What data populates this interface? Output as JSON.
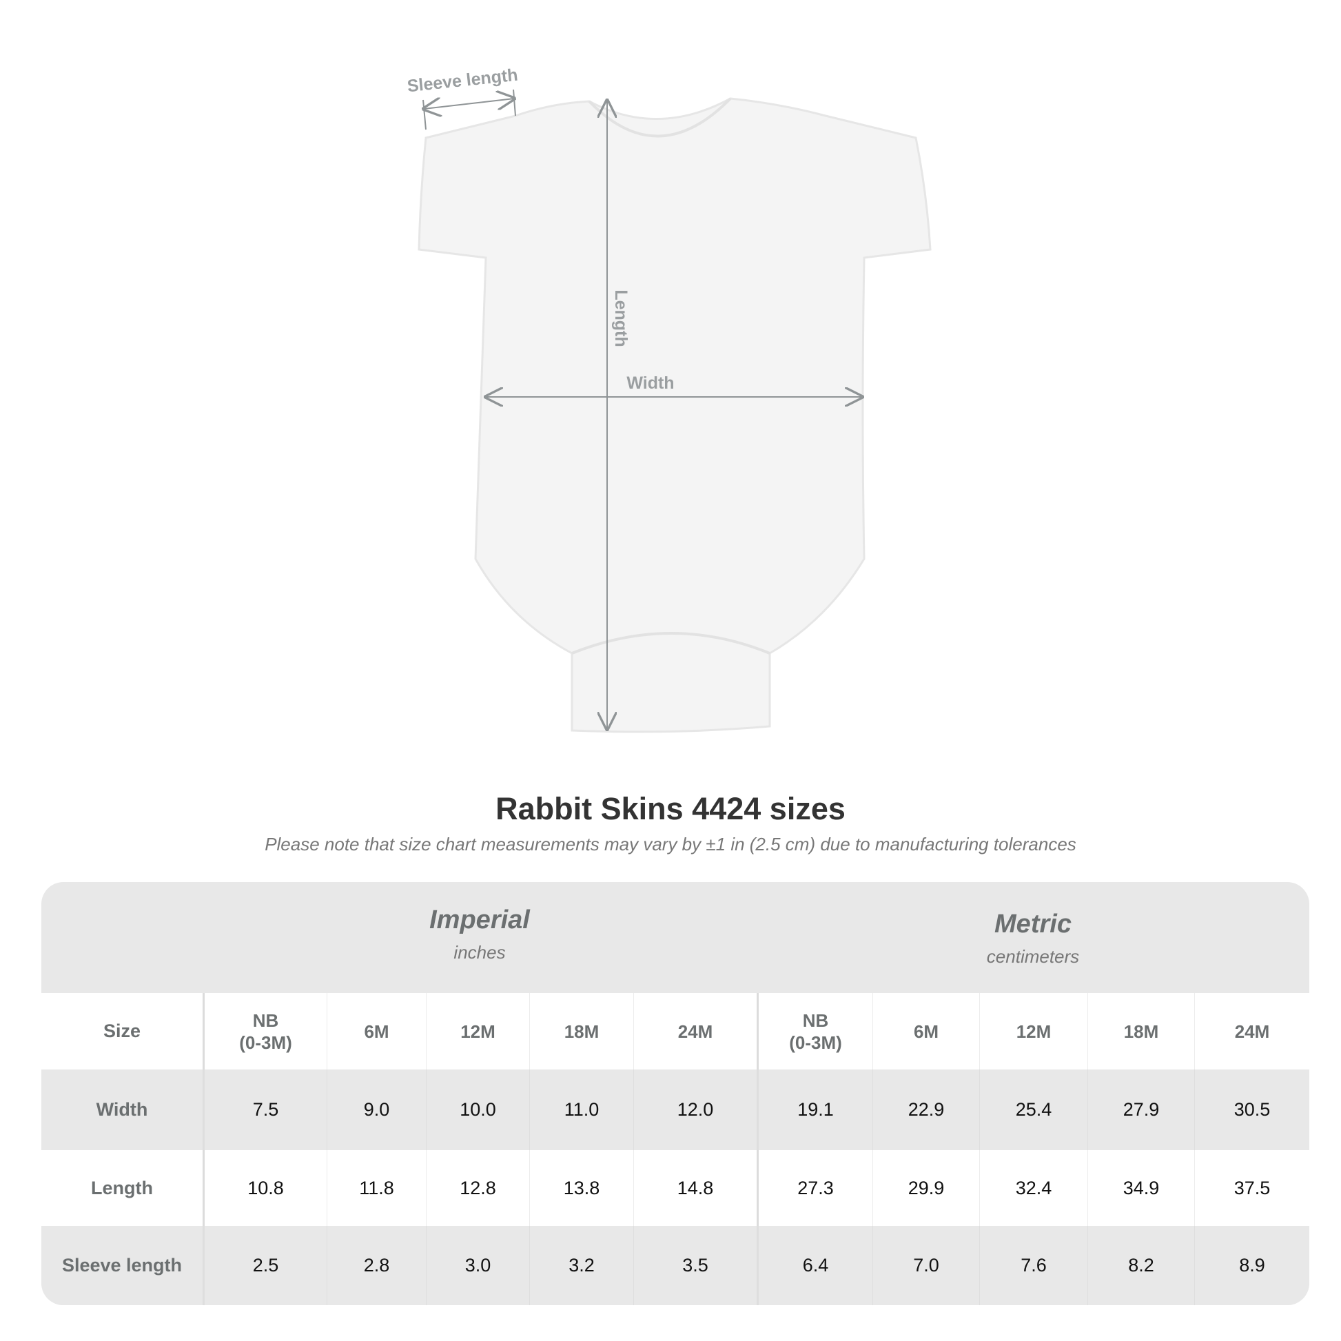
{
  "diagram": {
    "labels": {
      "sleeve": "Sleeve length",
      "length": "Length",
      "width": "Width"
    },
    "garment_color": "#f4f4f4",
    "measure_line_color": "#8f9496"
  },
  "title": "Rabbit Skins 4424 sizes",
  "subtitle": "Please note that size chart measurements may vary by ±1 in (2.5 cm) due to manufacturing tolerances",
  "table": {
    "imperial": {
      "label": "Imperial",
      "unit": "inches"
    },
    "metric": {
      "label": "Metric",
      "unit": "centimeters"
    },
    "size_label": "Size",
    "sizes": [
      "NB\n(0-3M)",
      "6M",
      "12M",
      "18M",
      "24M"
    ],
    "rows": [
      {
        "label": "Width",
        "imperial": [
          "7.5",
          "9.0",
          "10.0",
          "11.0",
          "12.0"
        ],
        "metric": [
          "19.1",
          "22.9",
          "25.4",
          "27.9",
          "30.5"
        ]
      },
      {
        "label": "Length",
        "imperial": [
          "10.8",
          "11.8",
          "12.8",
          "13.8",
          "14.8"
        ],
        "metric": [
          "27.3",
          "29.9",
          "32.4",
          "34.9",
          "37.5"
        ]
      },
      {
        "label": "Sleeve length",
        "imperial": [
          "2.5",
          "2.8",
          "3.0",
          "3.2",
          "3.5"
        ],
        "metric": [
          "6.4",
          "7.0",
          "7.6",
          "8.2",
          "8.9"
        ]
      }
    ]
  }
}
